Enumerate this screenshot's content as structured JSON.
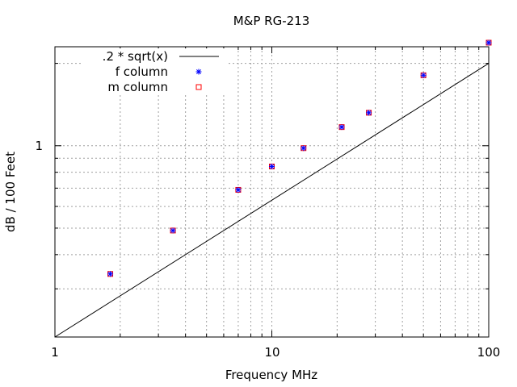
{
  "chart_data": {
    "type": "scatter",
    "title": "M&P RG-213",
    "xlabel": "Frequency MHz",
    "ylabel": "dB / 100 Feet",
    "xscale": "log",
    "yscale": "log",
    "xlim": [
      1,
      100
    ],
    "ylim": [
      0.2,
      2.3
    ],
    "grid": true,
    "legend_position": "top-left",
    "x_tick_labels": [
      "1",
      "10",
      "100"
    ],
    "y_tick_labels": [
      "1"
    ],
    "x_ticks": [
      1,
      10,
      100
    ],
    "y_ticks": [
      1
    ],
    "curve": {
      "name": ".2 * sqrt(x)",
      "color": "#000000",
      "coefficient": 0.2
    },
    "series": [
      {
        "name": "f column",
        "marker": "asterisk",
        "color": "#0000ff",
        "x": [
          1.8,
          3.5,
          7,
          10,
          14,
          21,
          28,
          50,
          100
        ],
        "y": [
          0.34,
          0.49,
          0.69,
          0.84,
          0.98,
          1.17,
          1.32,
          1.81,
          2.38
        ]
      },
      {
        "name": "m column",
        "marker": "square",
        "color": "#ff0000",
        "x": [
          1.8,
          3.5,
          7,
          10,
          14,
          21,
          28,
          50,
          100
        ],
        "y": [
          0.34,
          0.49,
          0.69,
          0.84,
          0.98,
          1.17,
          1.32,
          1.81,
          2.38
        ]
      }
    ]
  }
}
